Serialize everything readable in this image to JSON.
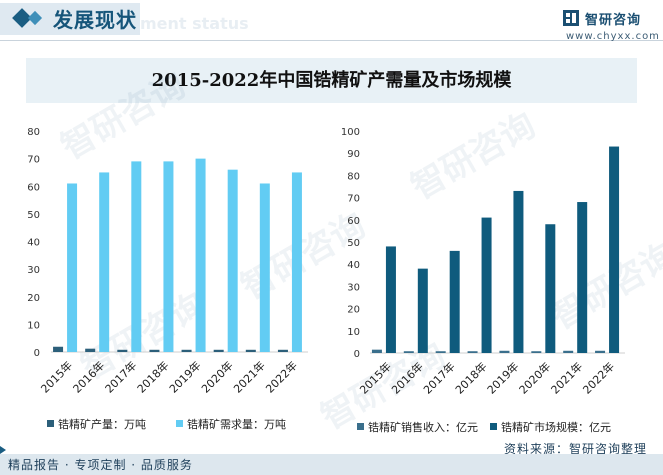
{
  "header": {
    "title": "发展现状",
    "ghost_text": "ment status",
    "logo_name": "智研咨询",
    "logo_url": "www.chyxx.com"
  },
  "footer": {
    "services": "精品报告 · 专项定制 · 品质服务",
    "source": "资料来源：智研咨询整理"
  },
  "watermark": {
    "text": "智研咨询"
  },
  "colors": {
    "dark_bar": "#2c5f7a",
    "light_bar": "#62ccf3",
    "market_bar": "#0f5b7d",
    "title_text": "#16557a"
  },
  "chart_data": [
    {
      "type": "bar",
      "title": "2015-2022年中国锆精矿产需量及市场规模",
      "categories": [
        "2015年",
        "2016年",
        "2017年",
        "2018年",
        "2019年",
        "2020年",
        "2021年",
        "2022年"
      ],
      "ylim": [
        0,
        80
      ],
      "yticks": [
        "0",
        "10",
        "20",
        "30",
        "40",
        "50",
        "60",
        "70",
        "80"
      ],
      "series": [
        {
          "name": "锆精矿产量：万吨",
          "color": "#2c5f7a",
          "values": [
            1.9,
            1.2,
            0.8,
            0.8,
            0.8,
            0.8,
            0.8,
            0.8
          ]
        },
        {
          "name": "锆精矿需求量：万吨",
          "color": "#62ccf3",
          "values": [
            61,
            65,
            69,
            69,
            70,
            66,
            61,
            65
          ]
        }
      ],
      "legend": "bottom"
    },
    {
      "type": "bar",
      "categories": [
        "2015年",
        "2016年",
        "2017年",
        "2018年",
        "2019年",
        "2020年",
        "2021年",
        "2022年"
      ],
      "ylim": [
        0,
        100
      ],
      "yticks": [
        "0",
        "10",
        "20",
        "30",
        "40",
        "50",
        "60",
        "70",
        "80",
        "90",
        "100"
      ],
      "series": [
        {
          "name": "锆精矿销售收入：亿元",
          "color": "#3a6f8c",
          "values": [
            1.5,
            0.8,
            0.8,
            0.8,
            1.0,
            0.8,
            1.0,
            1.0
          ]
        },
        {
          "name": "锆精矿市场规模：亿元",
          "color": "#0f5b7d",
          "values": [
            48,
            38,
            46,
            61,
            73,
            58,
            68,
            93
          ]
        }
      ],
      "legend": "bottom"
    }
  ]
}
